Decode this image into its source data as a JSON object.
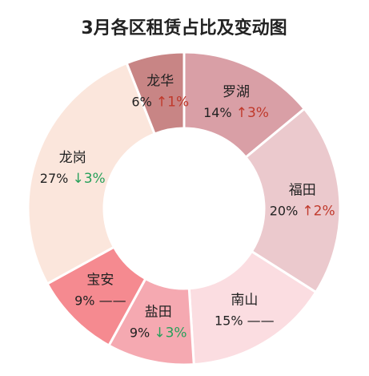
{
  "chart_data": {
    "type": "donut",
    "title": "3月各区租赁占比及变动图",
    "unit": "%",
    "slices": [
      {
        "name": "罗湖",
        "value": 14,
        "label": "14%",
        "change": "3%",
        "direction": "up",
        "color": "#d99fa6"
      },
      {
        "name": "福田",
        "value": 20,
        "label": "20%",
        "change": "2%",
        "direction": "up",
        "color": "#ebc9cd"
      },
      {
        "name": "南山",
        "value": 15,
        "label": "15%",
        "change": "",
        "direction": "flat",
        "color": "#fbdde1"
      },
      {
        "name": "盐田",
        "value": 9,
        "label": "9%",
        "change": "3%",
        "direction": "down",
        "color": "#f5a9b1"
      },
      {
        "name": "宝安",
        "value": 9,
        "label": "9%",
        "change": "",
        "direction": "flat",
        "color": "#f58a90"
      },
      {
        "name": "龙岗",
        "value": 27,
        "label": "27%",
        "change": "3%",
        "direction": "down",
        "color": "#fbe6dc"
      },
      {
        "name": "龙华",
        "value": 6,
        "label": "6%",
        "change": "1%",
        "direction": "up",
        "color": "#c88585"
      }
    ],
    "change_colors": {
      "up": "#c0392b",
      "down": "#27a05a",
      "flat": "#222222"
    }
  }
}
